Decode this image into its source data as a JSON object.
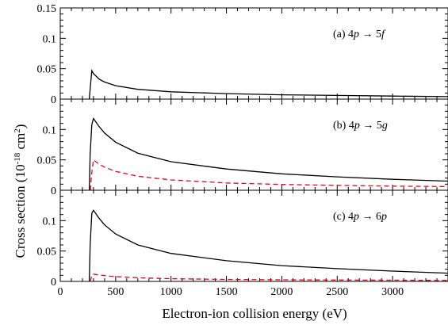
{
  "chart_data": {
    "type": "line",
    "xlabel": "Electron-ion collision energy (eV)",
    "ylabel": "Cross section (10",
    "ylabel_exponent": "-18",
    "ylabel_unit": " cm",
    "ylabel_unit_exponent": "2",
    "ylabel_close": ")",
    "xlim": [
      0,
      3500
    ],
    "xticks": [
      0,
      500,
      1000,
      1500,
      2000,
      2500,
      3000
    ],
    "xtick_labels": [
      "0",
      "500",
      "1000",
      "1500",
      "2000",
      "2500",
      "3000"
    ],
    "grid": false,
    "panels": [
      {
        "label": "(a)  4p → 5f",
        "label_prefix": "(a)  4",
        "orbital_from": "p",
        "arrow": "→",
        "label_level": "5",
        "orbital_to": "f",
        "ylim": [
          0,
          0.15
        ],
        "yticks": [
          0,
          0.05,
          0.1,
          0.15
        ],
        "ytick_labels": [
          "0",
          "0.05",
          "0.1",
          "0.15"
        ],
        "series": [
          {
            "color": "#000000",
            "style": "solid",
            "x": [
              262,
              268,
              285,
              300,
              350,
              400,
              500,
              700,
              1000,
              1500,
              2000,
              2500,
              3000,
              3500
            ],
            "y": [
              0,
              0.012,
              0.047,
              0.042,
              0.033,
              0.028,
              0.022,
              0.016,
              0.012,
              0.009,
              0.007,
              0.006,
              0.005,
              0.004
            ]
          }
        ]
      },
      {
        "label": "(b)  4p → 5g",
        "label_prefix": "(b)  4",
        "orbital_from": "p",
        "arrow": "→",
        "label_level": "5",
        "orbital_to": "g",
        "ylim": [
          0,
          0.15
        ],
        "yticks": [
          0,
          0.05,
          0.1
        ],
        "ytick_labels": [
          "0",
          "0.05",
          "0.1"
        ],
        "series": [
          {
            "color": "#000000",
            "style": "solid",
            "x": [
              262,
              270,
              285,
              300,
              350,
              400,
              500,
              700,
              1000,
              1500,
              2000,
              2500,
              3000,
              3500
            ],
            "y": [
              0,
              0.06,
              0.108,
              0.118,
              0.105,
              0.094,
              0.079,
              0.061,
              0.047,
              0.035,
              0.027,
              0.022,
              0.018,
              0.015
            ]
          },
          {
            "color": "#e8001c",
            "style": "dashed",
            "x": [
              272,
              282,
              300,
              350,
              400,
              500,
              700,
              1000,
              1500,
              2000,
              2500,
              3000,
              3500
            ],
            "y": [
              0,
              0.025,
              0.05,
              0.043,
              0.038,
              0.031,
              0.023,
              0.017,
              0.012,
              0.0095,
              0.008,
              0.0068,
              0.006
            ]
          }
        ]
      },
      {
        "label": "(c)  4p → 6p",
        "label_prefix": "(c)  4",
        "orbital_from": "p",
        "arrow": "→",
        "label_level": "6",
        "orbital_to": "p",
        "ylim": [
          0,
          0.15
        ],
        "yticks": [
          0,
          0.05,
          0.1
        ],
        "ytick_labels": [
          "0",
          "0.05",
          "0.1"
        ],
        "series": [
          {
            "color": "#000000",
            "style": "solid",
            "x": [
              262,
              270,
              285,
              300,
              350,
              400,
              500,
              700,
              1000,
              1500,
              2000,
              2500,
              3000,
              3500
            ],
            "y": [
              0,
              0.06,
              0.112,
              0.117,
              0.104,
              0.093,
              0.078,
              0.06,
              0.046,
              0.034,
              0.026,
              0.021,
              0.017,
              0.0135
            ]
          },
          {
            "color": "#e8001c",
            "style": "dashed",
            "x": [
              272,
              282,
              300,
              350,
              400,
              500,
              700,
              1000,
              1500,
              2000,
              2500,
              3000,
              3500
            ],
            "y": [
              0,
              0.008,
              0.012,
              0.0105,
              0.0095,
              0.0078,
              0.006,
              0.0045,
              0.0033,
              0.0026,
              0.0022,
              0.0019,
              0.0016
            ]
          }
        ]
      }
    ]
  }
}
